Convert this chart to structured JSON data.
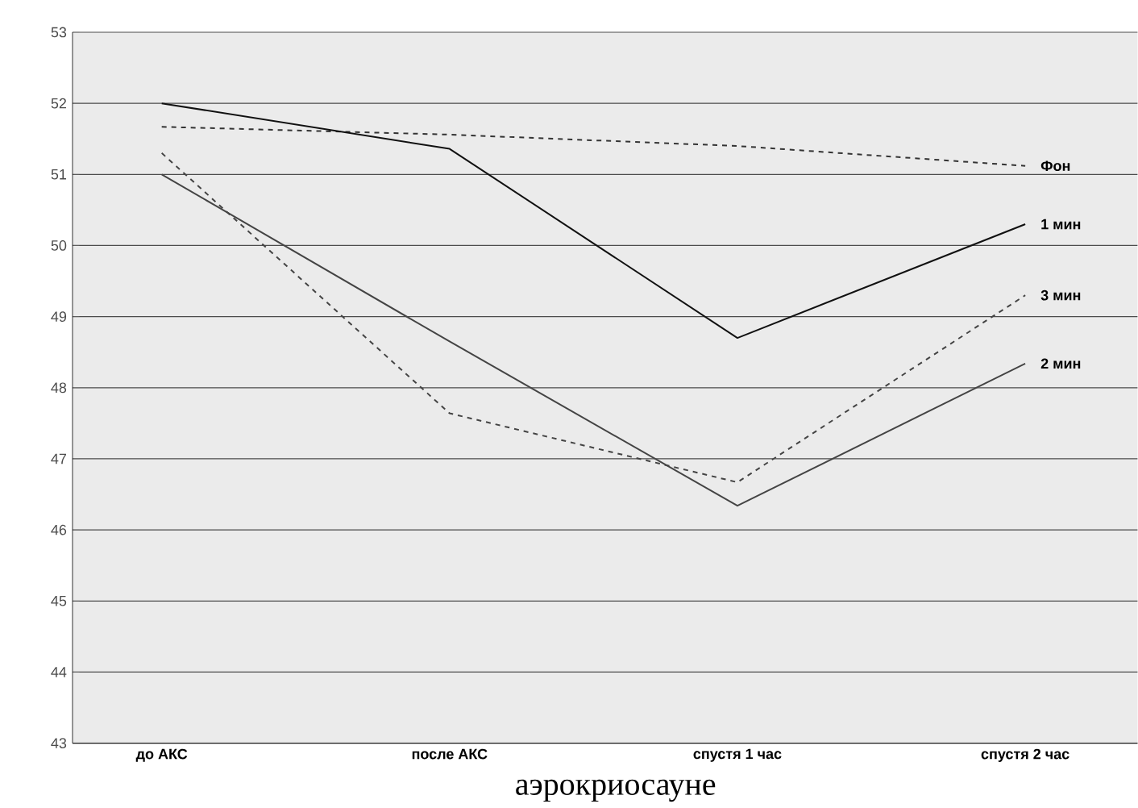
{
  "chart_data": {
    "type": "line",
    "categories": [
      "до АКС",
      "после АКС",
      "спустя 1 час",
      "спустя 2 час"
    ],
    "series": [
      {
        "name": "Фон",
        "color": "#333333",
        "line_style": "dashed",
        "values": [
          51.67,
          51.56,
          51.4,
          51.12
        ]
      },
      {
        "name": "1 мин",
        "color": "#111111",
        "line_style": "solid",
        "values": [
          52.0,
          51.36,
          48.7,
          50.3
        ]
      },
      {
        "name": "3 мин",
        "color": "#444444",
        "line_style": "dashed",
        "values": [
          51.3,
          47.64,
          46.67,
          49.3
        ]
      },
      {
        "name": "2 мин",
        "color": "#444444",
        "line_style": "solid",
        "values": [
          51.0,
          48.65,
          46.34,
          48.34
        ]
      }
    ],
    "ylim": [
      43,
      53
    ],
    "yticks": [
      43,
      44,
      45,
      46,
      47,
      48,
      49,
      50,
      51,
      52,
      53
    ],
    "grid": "y",
    "annotations": [
      "аэрокриосауне"
    ]
  }
}
